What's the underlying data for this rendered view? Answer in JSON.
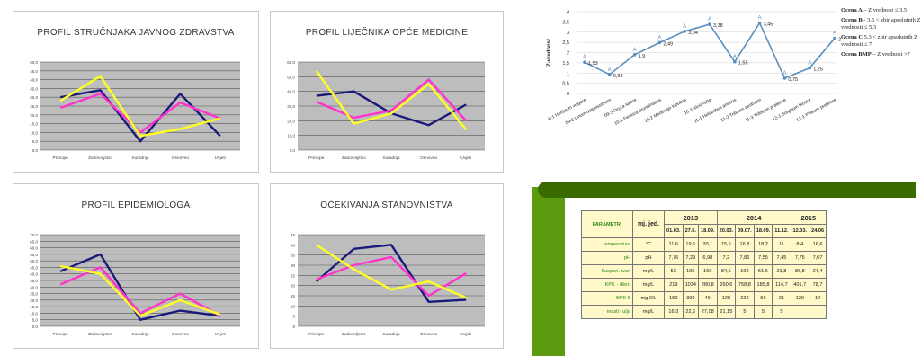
{
  "chart_data": [
    {
      "type": "line",
      "title": "PROFIL STRUČNJAKA JAVNOG ZDRAVSTVA",
      "categories": [
        "Principe",
        "Zadovoljstvo",
        "Suradnja",
        "Osnovno",
        "Uvjeti"
      ],
      "yticks": [
        "50,0",
        "45,0",
        "40,0",
        "35,0",
        "30,0",
        "25,0",
        "20,0",
        "15,0",
        "10,0",
        "5,0",
        "0,0"
      ],
      "ylim": [
        0,
        50
      ],
      "series": [
        {
          "color": "#1a1a7a",
          "values": [
            30,
            34,
            5,
            32,
            8
          ]
        },
        {
          "color": "#ff33cc",
          "values": [
            24,
            32,
            10,
            27,
            18
          ]
        },
        {
          "color": "#ffff22",
          "values": [
            28,
            42,
            8,
            12,
            18
          ]
        }
      ]
    },
    {
      "type": "line",
      "title": "PROFIL LIJEČNIKA OPĆE MEDICINE",
      "categories": [
        "Principe",
        "Zadovoljstvo",
        "Suradnja",
        "Osnovno",
        "Uvjeti"
      ],
      "yticks": [
        "60,0",
        "50,0",
        "40,0",
        "30,0",
        "20,0",
        "10,0",
        "0,0"
      ],
      "ylim": [
        0,
        60
      ],
      "series": [
        {
          "color": "#1a1a7a",
          "values": [
            37,
            40,
            25,
            17,
            31
          ]
        },
        {
          "color": "#ff33cc",
          "values": [
            33,
            22,
            27,
            48,
            20
          ]
        },
        {
          "color": "#ffff22",
          "values": [
            54,
            18,
            25,
            45,
            14
          ]
        }
      ]
    },
    {
      "type": "line",
      "title": "PROFIL EPIDEMIOLOGA",
      "categories": [
        "Principe",
        "Zadovoljstvo",
        "Suradnja",
        "Osnovno",
        "Uvjeti"
      ],
      "yticks": [
        "70,0",
        "65,0",
        "60,0",
        "55,0",
        "50,0",
        "45,0",
        "40,0",
        "35,0",
        "30,0",
        "25,0",
        "20,0",
        "15,0",
        "10,0",
        "5,0",
        "0,0"
      ],
      "ylim": [
        0,
        70
      ],
      "series": [
        {
          "color": "#1a1a7a",
          "values": [
            42,
            55,
            5,
            12,
            8
          ]
        },
        {
          "color": "#ff33cc",
          "values": [
            32,
            45,
            10,
            25,
            8
          ]
        },
        {
          "color": "#ffff22",
          "values": [
            46,
            40,
            8,
            20,
            9
          ]
        }
      ]
    },
    {
      "type": "line",
      "title": "OČEKIVANJA STANOVNIŠTVA",
      "categories": [
        "Principe",
        "Zadovoljstvo",
        "Suradnja",
        "Osnovno",
        "Uvjeti"
      ],
      "yticks": [
        "45",
        "40",
        "35",
        "30",
        "25",
        "20",
        "15",
        "10",
        "5",
        "0"
      ],
      "ylim": [
        0,
        45
      ],
      "series": [
        {
          "color": "#1a1a7a",
          "values": [
            22,
            38,
            40,
            12,
            13
          ]
        },
        {
          "color": "#ff33cc",
          "values": [
            23,
            30,
            34,
            15,
            26
          ]
        },
        {
          "color": "#ffff22",
          "values": [
            40,
            28,
            18,
            22,
            14
          ]
        }
      ]
    },
    {
      "type": "line",
      "ylabel": "Z-vrednost",
      "yticks": [
        "4",
        "3,5",
        "3",
        "2,5",
        "2",
        "1,5",
        "1",
        "0,5",
        "0"
      ],
      "ylim": [
        0,
        4
      ],
      "categories": [
        "A-1 Hordeum vulgare",
        "09-2 Linum usitatissimum",
        "09-3 Oryza sativa",
        "10-1 Festuca arundinacea",
        "10-2 Medicago lupulina",
        "10-3 Vicia faba",
        "11-1 Helianthus annuus",
        "11-2 Triticum aestivum",
        "11-3 Trifolium pratense",
        "12-1 Sorghum bicolor",
        "12-1 Phleum pratense"
      ],
      "values": [
        1.53,
        0.93,
        1.9,
        2.49,
        3.04,
        3.38,
        1.55,
        3.45,
        0.75,
        1.25,
        2.7
      ],
      "value_labels": [
        "1,53",
        "0,93",
        "1,9",
        "2,49",
        "3,04",
        "3,38",
        "1,55",
        "3,45",
        "0,75",
        "1,25",
        "2,7"
      ],
      "point_marker": "A",
      "legend": [
        {
          "bold": "Ocena A",
          "rest": " – Z vrednost ≤ 3.5"
        },
        {
          "bold": "Ocena B",
          "rest": " - 3.5 < zbir apsolutnih Z vrednosti ≤ 5.3"
        },
        {
          "bold": "Ocena C",
          "rest": " 5.3 < zbir apsolutnih Z vrednosti ≤ 7"
        },
        {
          "bold": "Ocena BMP",
          "rest": " – Z vrednost >7"
        }
      ]
    }
  ],
  "table": {
    "param_header": "PARAMETRI",
    "unit_header": "mj. jed.",
    "years": [
      {
        "label": "2013",
        "span": 3
      },
      {
        "label": "2014",
        "span": 4
      },
      {
        "label": "2015",
        "span": 2
      }
    ],
    "dates": [
      "01.03.",
      "27.6.",
      "18.09.",
      "20.03.",
      "09.07.",
      "18.09.",
      "11.12.",
      "12.03.",
      "24.06"
    ],
    "rows": [
      {
        "param": "temperatura",
        "unit": "°C",
        "values": [
          "11,6",
          "19,5",
          "20,1",
          "15,5",
          "16,8",
          "18,2",
          "11",
          "8,4",
          "16,6"
        ]
      },
      {
        "param": "pH",
        "unit": "pH",
        "values": [
          "7,76",
          "7,29",
          "6,98",
          "7,2",
          "7,86",
          "7,55",
          "7,45",
          "7,75",
          "7,07"
        ]
      },
      {
        "param": "Suspen. tvari",
        "unit": "mg/L",
        "values": [
          "52",
          "195",
          "169",
          "84,5",
          "102",
          "51,6",
          "21,8",
          "86,8",
          "24,4"
        ]
      },
      {
        "param": "KPK - dikro",
        "unit": "mg/L",
        "values": [
          "219",
          "1034",
          "280,8",
          "260,6",
          "758,8",
          "185,8",
          "114,7",
          "401,7",
          "78,7"
        ]
      },
      {
        "param": "BPK 5",
        "unit": "mg 2/L",
        "values": [
          "150",
          "300",
          "46",
          "128",
          "222",
          "56",
          "21",
          "129",
          "14"
        ]
      },
      {
        "param": "masti i ulja",
        "unit": "mg/L",
        "values": [
          "16,3",
          "22,6",
          "27,08",
          "21,15",
          "5",
          "5",
          "5",
          "",
          ""
        ]
      }
    ]
  }
}
